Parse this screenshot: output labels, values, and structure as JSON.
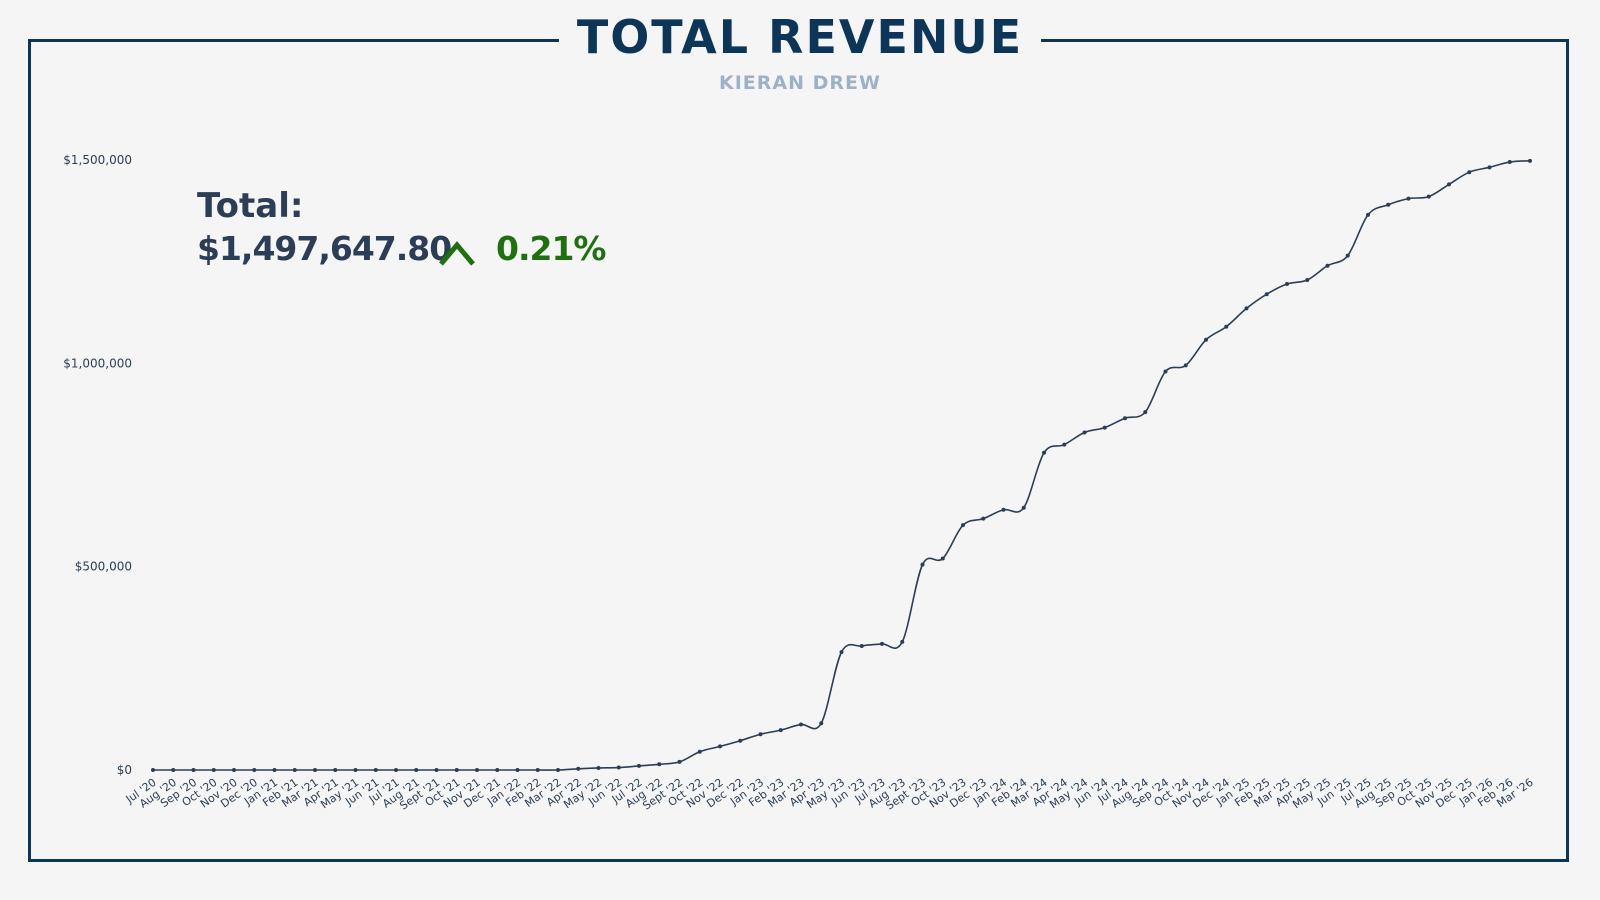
{
  "header": {
    "title": "TOTAL REVENUE",
    "subtitle": "KIERAN DREW"
  },
  "summary": {
    "total_label": "Total:",
    "total_value": "$1,497,647.80",
    "change_value": "0.21%",
    "change_direction": "up",
    "change_color": "#207012"
  },
  "colors": {
    "frame": "#0d3557",
    "line": "#2c3e55",
    "background": "#f5f5f5"
  },
  "chart_data": {
    "type": "line",
    "title": "TOTAL REVENUE",
    "subtitle": "KIERAN DREW",
    "ylim": [
      0,
      1500000
    ],
    "yticks": [
      0,
      500000,
      1000000,
      1500000
    ],
    "ytick_labels": [
      "$0",
      "$500,000",
      "$1,000,000",
      "$1,500,000"
    ],
    "grid": false,
    "categories": [
      "Jul '20",
      "Aug '20",
      "Sep '20",
      "Oct '20",
      "Nov '20",
      "Dec '20",
      "Jan '21",
      "Feb '21",
      "Mar '21",
      "Apr '21",
      "May '21",
      "Jun '21",
      "Jul '21",
      "Aug '21",
      "Sept '21",
      "Oct '21",
      "Nov '21",
      "Dec '21",
      "Jan '22",
      "Feb '22",
      "Mar '22",
      "Apr '22",
      "May '22",
      "Jun '22",
      "Jul '22",
      "Aug '22",
      "Sept '22",
      "Oct '22",
      "Nov '22",
      "Dec '22",
      "Jan '23",
      "Feb '23",
      "Mar '23",
      "Apr '23",
      "May '23",
      "Jun '23",
      "Jul '23",
      "Aug '23",
      "Sept '23",
      "Oct '23",
      "Nov '23",
      "Dec '23",
      "Jan '24",
      "Feb '24",
      "Mar '24",
      "Apr '24",
      "May '24",
      "Jun '24",
      "Jul '24",
      "Aug '24",
      "Sep '24",
      "Oct '24",
      "Nov '24",
      "Dec '24",
      "Jan '25",
      "Feb '25",
      "Mar '25",
      "Apr '25",
      "May '25",
      "Jun '25",
      "Jul '25",
      "Aug '25",
      "Sep '25",
      "Oct '25",
      "Nov '25",
      "Dec '25",
      "Jan '26",
      "Feb '26",
      "Mar '26"
    ],
    "series": [
      {
        "values": [
          0,
          0,
          0,
          0,
          0,
          0,
          0,
          0,
          0,
          0,
          0,
          0,
          0,
          0,
          0,
          0,
          0,
          0,
          0,
          0,
          0,
          3000,
          5000,
          6000,
          10000,
          14000,
          20000,
          45000,
          58000,
          72000,
          88000,
          98000,
          112000,
          115000,
          290000,
          305000,
          310000,
          315000,
          505000,
          520000,
          602000,
          618000,
          640000,
          645000,
          780000,
          800000,
          830000,
          842000,
          865000,
          880000,
          980000,
          995000,
          1058000,
          1090000,
          1135000,
          1170000,
          1195000,
          1205000,
          1240000,
          1265000,
          1365000,
          1390000,
          1405000,
          1410000,
          1440000,
          1470000,
          1482000,
          1495000,
          1498000
        ]
      }
    ]
  }
}
